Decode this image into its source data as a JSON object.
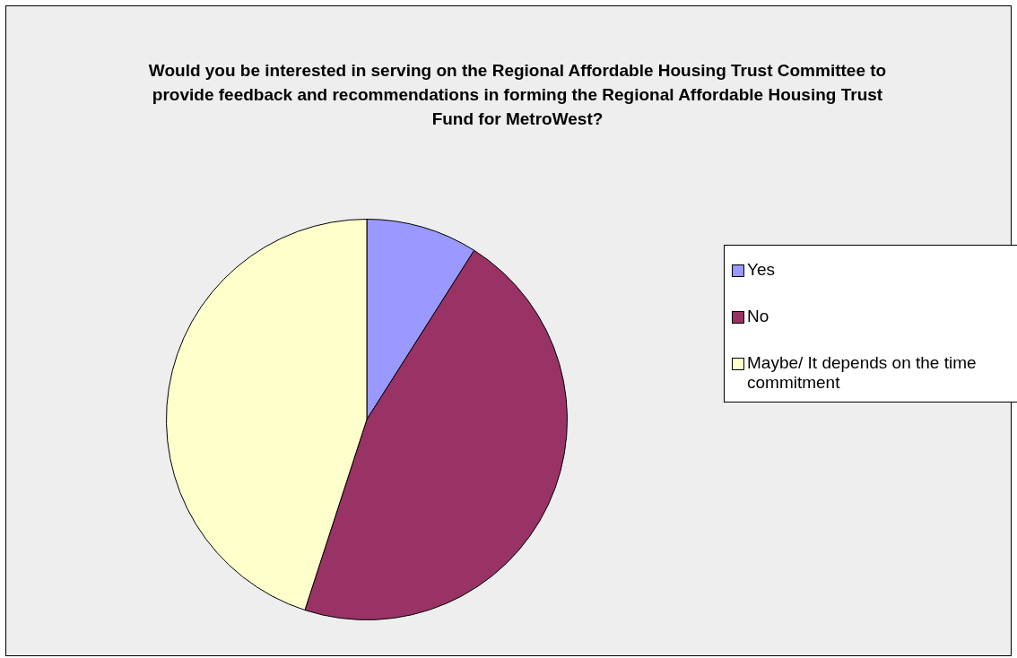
{
  "chart_data": {
    "type": "pie",
    "title": "Would you be interested in serving on the Regional Affordable Housing Trust Committee to provide feedback and recommendations in forming the Regional Affordable Housing Trust Fund for MetroWest?",
    "categories": [
      "Yes",
      "No",
      "Maybe/ It depends on the time commitment"
    ],
    "values": [
      9,
      46,
      45
    ],
    "colors": [
      "#9999ff",
      "#993366",
      "#ffffcc"
    ],
    "legend": "right"
  }
}
